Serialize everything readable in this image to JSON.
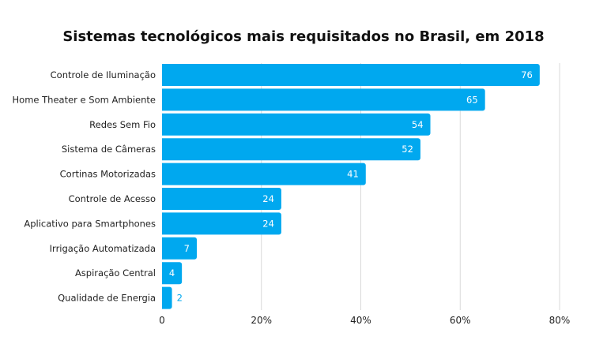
{
  "chart_data": {
    "type": "bar",
    "orientation": "horizontal",
    "title": "Sistemas tecnológicos mais requisitados no Brasil, em 2018",
    "categories": [
      "Controle de Iluminação",
      "Home Theater e Som Ambiente",
      "Redes Sem Fio",
      "Sistema de Câmeras",
      "Cortinas Motorizadas",
      "Controle de Acesso",
      "Aplicativo para Smartphones",
      "Irrigação Automatizada",
      "Aspiração Central",
      "Qualidade de Energia"
    ],
    "values": [
      76,
      65,
      54,
      52,
      41,
      24,
      24,
      7,
      4,
      2
    ],
    "value_labels": [
      "76",
      "65",
      "54",
      "52",
      "41",
      "24",
      "24",
      "7",
      "4",
      "2"
    ],
    "xlabel": "",
    "ylabel": "",
    "xlim": [
      0,
      80
    ],
    "xticks": [
      0,
      20,
      40,
      60,
      80
    ],
    "xtick_labels": [
      "0",
      "20%",
      "40%",
      "60%",
      "80%"
    ],
    "grid": true,
    "bar_color": "#00a8ef",
    "grid_color": "#d9d9d9"
  }
}
